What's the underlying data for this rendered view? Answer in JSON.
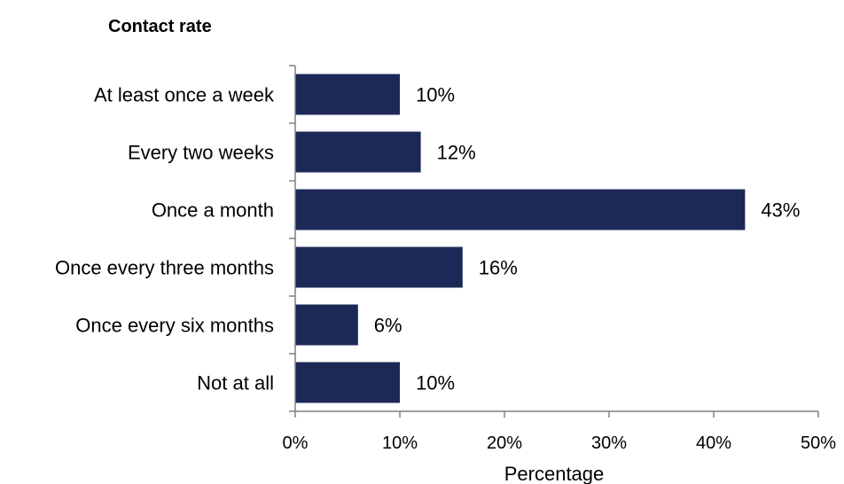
{
  "chart_data": {
    "type": "bar",
    "orientation": "horizontal",
    "title": "Contact rate",
    "xlabel": "Percentage",
    "ylabel": "",
    "categories": [
      "At least once a week",
      "Every two weeks",
      "Once a month",
      "Once every three months",
      "Once every six months",
      "Not at all"
    ],
    "values": [
      10,
      12,
      43,
      16,
      6,
      10
    ],
    "value_labels": [
      "10%",
      "12%",
      "43%",
      "16%",
      "6%",
      "10%"
    ],
    "xlim": [
      0,
      50
    ],
    "x_ticks": [
      0,
      10,
      20,
      30,
      40,
      50
    ],
    "x_tick_labels": [
      "0%",
      "10%",
      "20%",
      "30%",
      "40%",
      "50%"
    ],
    "bar_color": "#1c2957",
    "grid": false,
    "legend": "none"
  }
}
